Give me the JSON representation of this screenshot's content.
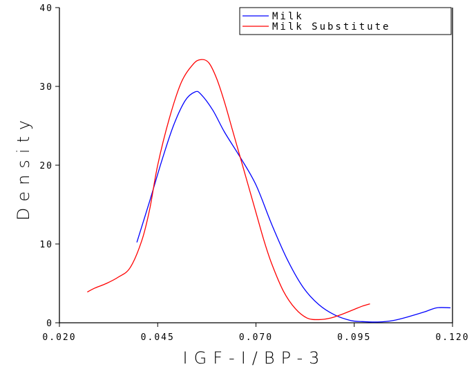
{
  "chart_data": {
    "type": "line",
    "title": "",
    "xlabel": "IGF-I/BP-3",
    "ylabel": "Density",
    "xlim": [
      0.02,
      0.12
    ],
    "ylim": [
      0,
      40
    ],
    "x_ticks": [
      "0.020",
      "0.045",
      "0.070",
      "0.095",
      "0.120"
    ],
    "y_ticks": [
      "0",
      "10",
      "20",
      "30",
      "40"
    ],
    "legend_position": "top-right",
    "series": [
      {
        "name": "Milk",
        "color": "#0000ff",
        "x": [
          0.0397,
          0.043,
          0.046,
          0.049,
          0.052,
          0.0545,
          0.056,
          0.059,
          0.062,
          0.066,
          0.07,
          0.074,
          0.078,
          0.082,
          0.086,
          0.09,
          0.094,
          0.097,
          0.101,
          0.105,
          0.109,
          0.113,
          0.116,
          0.1195
        ],
        "y": [
          10.2,
          15.5,
          20.5,
          25.0,
          28.2,
          29.3,
          29.0,
          27.0,
          24.2,
          21.0,
          17.5,
          12.5,
          8.0,
          4.5,
          2.3,
          1.0,
          0.3,
          0.15,
          0.1,
          0.3,
          0.8,
          1.4,
          1.9,
          1.9
        ]
      },
      {
        "name": "Milk Substitute",
        "color": "#ff0000",
        "x": [
          0.0271,
          0.029,
          0.032,
          0.035,
          0.038,
          0.041,
          0.043,
          0.045,
          0.048,
          0.051,
          0.054,
          0.056,
          0.058,
          0.06,
          0.062,
          0.064,
          0.066,
          0.068,
          0.07,
          0.072,
          0.074,
          0.077,
          0.08,
          0.083,
          0.086,
          0.089,
          0.092,
          0.095,
          0.097,
          0.099
        ],
        "y": [
          3.9,
          4.4,
          5.0,
          5.8,
          7.0,
          10.5,
          14.5,
          20.0,
          26.0,
          30.5,
          32.8,
          33.4,
          33.0,
          31.0,
          28.0,
          24.5,
          21.0,
          17.5,
          14.0,
          10.5,
          7.5,
          4.0,
          1.8,
          0.6,
          0.4,
          0.6,
          1.1,
          1.7,
          2.1,
          2.4
        ]
      }
    ]
  }
}
